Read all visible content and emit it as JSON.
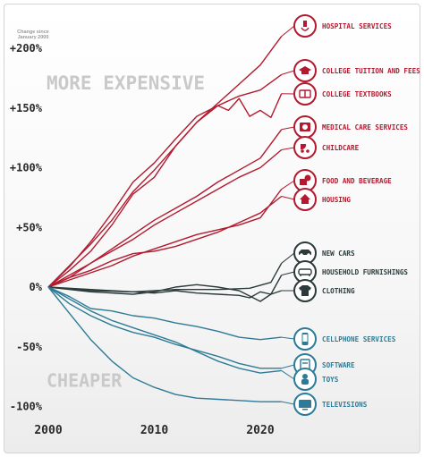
{
  "chart_data": {
    "type": "line",
    "axis_note": [
      "Change since",
      "January 2000"
    ],
    "y_ticks": [
      200,
      150,
      100,
      50,
      0,
      -50,
      -100
    ],
    "y_tick_labels": [
      "+200%",
      "+150%",
      "+100%",
      "+50%",
      "0%",
      "-50%",
      "-100%"
    ],
    "x_ticks": [
      2000,
      2010,
      2020
    ],
    "x_tick_labels": [
      "2000",
      "2010",
      "2020"
    ],
    "xlim": [
      2000,
      2023
    ],
    "ylim": [
      -100,
      200
    ],
    "grid": false,
    "annotations": [
      {
        "text": "MORE EXPENSIVE",
        "x": 2000,
        "y": 173
      },
      {
        "text": "CHEAPER",
        "x": 2000,
        "y": -76
      }
    ],
    "colors": {
      "expensive": "#b31a2f",
      "neutral": "#2b3a3a",
      "cheaper": "#2d7b96"
    },
    "series": [
      {
        "name": "HOSPITAL SERVICES",
        "group": "expensive",
        "icon": "hospital-icon",
        "points": [
          [
            2000,
            0
          ],
          [
            2002,
            18
          ],
          [
            2004,
            36
          ],
          [
            2006,
            56
          ],
          [
            2008,
            80
          ],
          [
            2010,
            98
          ],
          [
            2012,
            118
          ],
          [
            2014,
            138
          ],
          [
            2016,
            154
          ],
          [
            2018,
            170
          ],
          [
            2020,
            186
          ],
          [
            2022,
            210
          ]
        ]
      },
      {
        "name": "COLLEGE TUITION AND FEES",
        "group": "expensive",
        "icon": "graduation-cap-icon",
        "points": [
          [
            2000,
            0
          ],
          [
            2002,
            17
          ],
          [
            2004,
            38
          ],
          [
            2006,
            62
          ],
          [
            2008,
            88
          ],
          [
            2010,
            104
          ],
          [
            2012,
            124
          ],
          [
            2014,
            143
          ],
          [
            2016,
            152
          ],
          [
            2018,
            160
          ],
          [
            2020,
            165
          ],
          [
            2022,
            178
          ]
        ]
      },
      {
        "name": "COLLEGE TEXTBOOKS",
        "group": "expensive",
        "icon": "book-icon",
        "points": [
          [
            2000,
            0
          ],
          [
            2002,
            14
          ],
          [
            2004,
            30
          ],
          [
            2006,
            52
          ],
          [
            2008,
            78
          ],
          [
            2010,
            92
          ],
          [
            2012,
            118
          ],
          [
            2014,
            138
          ],
          [
            2016,
            152
          ],
          [
            2017,
            148
          ],
          [
            2018,
            158
          ],
          [
            2019,
            143
          ],
          [
            2020,
            148
          ],
          [
            2021,
            142
          ],
          [
            2022,
            162
          ]
        ]
      },
      {
        "name": "MEDICAL CARE SERVICES",
        "group": "expensive",
        "icon": "medical-kit-icon",
        "points": [
          [
            2000,
            0
          ],
          [
            2002,
            8
          ],
          [
            2004,
            20
          ],
          [
            2006,
            32
          ],
          [
            2008,
            44
          ],
          [
            2010,
            56
          ],
          [
            2012,
            66
          ],
          [
            2014,
            76
          ],
          [
            2016,
            88
          ],
          [
            2018,
            98
          ],
          [
            2020,
            108
          ],
          [
            2022,
            132
          ]
        ]
      },
      {
        "name": "CHILDCARE",
        "group": "expensive",
        "icon": "stroller-icon",
        "points": [
          [
            2000,
            0
          ],
          [
            2002,
            10
          ],
          [
            2004,
            20
          ],
          [
            2006,
            30
          ],
          [
            2008,
            40
          ],
          [
            2010,
            52
          ],
          [
            2012,
            62
          ],
          [
            2014,
            72
          ],
          [
            2016,
            82
          ],
          [
            2018,
            92
          ],
          [
            2020,
            100
          ],
          [
            2022,
            115
          ]
        ]
      },
      {
        "name": "FOOD AND BEVERAGE",
        "group": "expensive",
        "icon": "food-icon",
        "points": [
          [
            2000,
            0
          ],
          [
            2002,
            6
          ],
          [
            2004,
            12
          ],
          [
            2006,
            18
          ],
          [
            2008,
            26
          ],
          [
            2010,
            32
          ],
          [
            2012,
            38
          ],
          [
            2014,
            44
          ],
          [
            2016,
            48
          ],
          [
            2018,
            52
          ],
          [
            2020,
            58
          ],
          [
            2022,
            82
          ]
        ]
      },
      {
        "name": "HOUSING",
        "group": "expensive",
        "icon": "house-icon",
        "points": [
          [
            2000,
            0
          ],
          [
            2002,
            8
          ],
          [
            2004,
            14
          ],
          [
            2006,
            22
          ],
          [
            2008,
            28
          ],
          [
            2010,
            30
          ],
          [
            2012,
            34
          ],
          [
            2014,
            40
          ],
          [
            2016,
            46
          ],
          [
            2018,
            54
          ],
          [
            2020,
            62
          ],
          [
            2022,
            76
          ]
        ]
      },
      {
        "name": "NEW CARS",
        "group": "neutral",
        "icon": "car-icon",
        "points": [
          [
            2000,
            0
          ],
          [
            2004,
            -2
          ],
          [
            2008,
            -4
          ],
          [
            2012,
            -2
          ],
          [
            2016,
            -2
          ],
          [
            2019,
            -1
          ],
          [
            2021,
            4
          ],
          [
            2022,
            20
          ]
        ]
      },
      {
        "name": "HOUSEHOLD FURNISHINGS",
        "group": "neutral",
        "icon": "sofa-icon",
        "points": [
          [
            2000,
            0
          ],
          [
            2004,
            -3
          ],
          [
            2008,
            -4
          ],
          [
            2010,
            -5
          ],
          [
            2012,
            -3
          ],
          [
            2014,
            -5
          ],
          [
            2016,
            -6
          ],
          [
            2018,
            -7
          ],
          [
            2019,
            -9
          ],
          [
            2020,
            -4
          ],
          [
            2021,
            -6
          ],
          [
            2022,
            10
          ]
        ]
      },
      {
        "name": "CLOTHING",
        "group": "neutral",
        "icon": "shirt-icon",
        "points": [
          [
            2000,
            0
          ],
          [
            2004,
            -4
          ],
          [
            2008,
            -6
          ],
          [
            2010,
            -4
          ],
          [
            2012,
            0
          ],
          [
            2014,
            2
          ],
          [
            2016,
            0
          ],
          [
            2018,
            -3
          ],
          [
            2020,
            -12
          ],
          [
            2021,
            -6
          ],
          [
            2022,
            -3
          ]
        ]
      },
      {
        "name": "CELLPHONE SERVICES",
        "group": "cheaper",
        "icon": "phone-icon",
        "points": [
          [
            2000,
            0
          ],
          [
            2002,
            -8
          ],
          [
            2004,
            -18
          ],
          [
            2006,
            -20
          ],
          [
            2008,
            -24
          ],
          [
            2010,
            -26
          ],
          [
            2012,
            -30
          ],
          [
            2014,
            -33
          ],
          [
            2016,
            -37
          ],
          [
            2018,
            -42
          ],
          [
            2020,
            -44
          ],
          [
            2022,
            -42
          ]
        ]
      },
      {
        "name": "SOFTWARE",
        "group": "cheaper",
        "icon": "software-icon",
        "points": [
          [
            2000,
            0
          ],
          [
            2002,
            -14
          ],
          [
            2004,
            -24
          ],
          [
            2006,
            -32
          ],
          [
            2008,
            -38
          ],
          [
            2010,
            -42
          ],
          [
            2012,
            -48
          ],
          [
            2014,
            -53
          ],
          [
            2016,
            -58
          ],
          [
            2018,
            -64
          ],
          [
            2020,
            -68
          ],
          [
            2022,
            -68
          ]
        ]
      },
      {
        "name": "TOYS",
        "group": "cheaper",
        "icon": "toy-icon",
        "points": [
          [
            2000,
            0
          ],
          [
            2002,
            -10
          ],
          [
            2004,
            -20
          ],
          [
            2006,
            -28
          ],
          [
            2008,
            -34
          ],
          [
            2010,
            -40
          ],
          [
            2012,
            -46
          ],
          [
            2014,
            -54
          ],
          [
            2016,
            -62
          ],
          [
            2018,
            -68
          ],
          [
            2020,
            -72
          ],
          [
            2022,
            -70
          ]
        ]
      },
      {
        "name": "TELEVISIONS",
        "group": "cheaper",
        "icon": "tv-icon",
        "points": [
          [
            2000,
            0
          ],
          [
            2002,
            -22
          ],
          [
            2004,
            -44
          ],
          [
            2006,
            -62
          ],
          [
            2008,
            -76
          ],
          [
            2010,
            -84
          ],
          [
            2012,
            -90
          ],
          [
            2014,
            -93
          ],
          [
            2016,
            -94
          ],
          [
            2018,
            -95
          ],
          [
            2020,
            -96
          ],
          [
            2022,
            -96
          ]
        ]
      }
    ]
  }
}
